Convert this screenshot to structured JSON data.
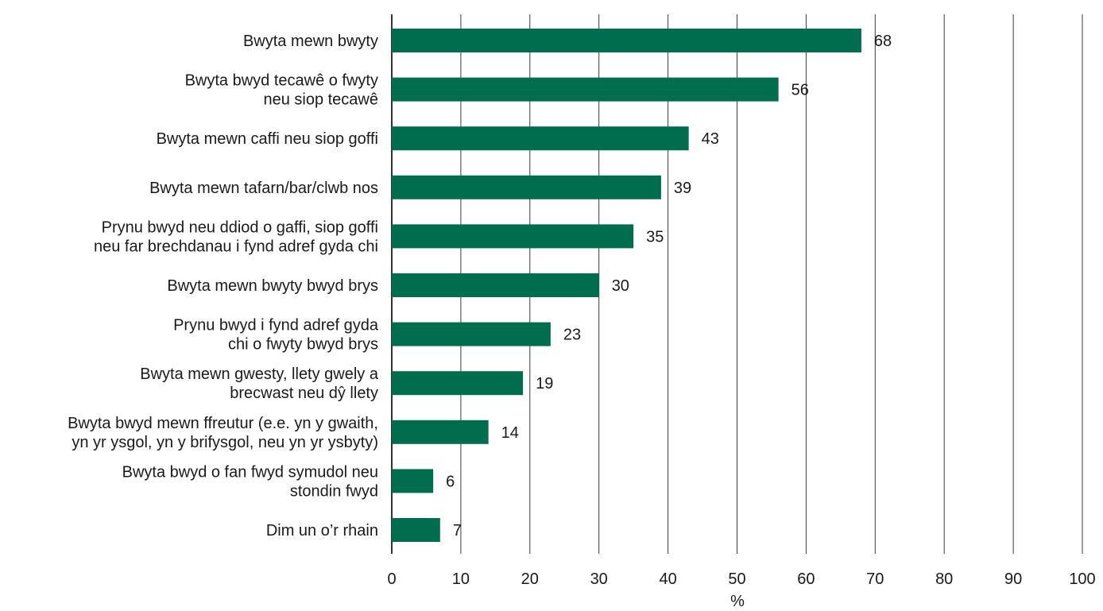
{
  "chart_data": {
    "type": "bar",
    "orientation": "horizontal",
    "categories": [
      [
        "Bwyta mewn bwyty"
      ],
      [
        "Bwyta bwyd tecawê o fwyty",
        "neu siop tecawê"
      ],
      [
        "Bwyta mewn caffi neu siop goffi"
      ],
      [
        "Bwyta mewn tafarn/bar/clwb nos"
      ],
      [
        "Prynu bwyd neu ddiod o gaffi, siop goffi",
        "neu far brechdanau i fynd adref gyda chi"
      ],
      [
        "Bwyta mewn bwyty bwyd brys"
      ],
      [
        "Prynu bwyd i fynd adref gyda",
        "chi o fwyty bwyd brys"
      ],
      [
        "Bwyta mewn gwesty, llety gwely a",
        "brecwast neu dŷ llety"
      ],
      [
        "Bwyta bwyd mewn ffreutur (e.e. yn y gwaith,",
        "yn yr ysgol, yn y brifysgol, neu yn yr ysbyty)"
      ],
      [
        "Bwyta bwyd o fan fwyd symudol neu",
        "stondin fwyd"
      ],
      [
        "Dim un o’r rhain"
      ]
    ],
    "values": [
      68,
      56,
      43,
      39,
      35,
      30,
      23,
      19,
      14,
      6,
      7
    ],
    "data_labels": [
      "68",
      "56",
      "43",
      "39",
      "35",
      "30",
      "23",
      "19",
      "14",
      "6",
      "7"
    ],
    "xlabel": "%",
    "xlim": [
      0,
      100
    ],
    "xticks": [
      0,
      10,
      20,
      30,
      40,
      50,
      60,
      70,
      80,
      90,
      100
    ],
    "grid": "vertical",
    "bar_color": "#006e4e"
  }
}
